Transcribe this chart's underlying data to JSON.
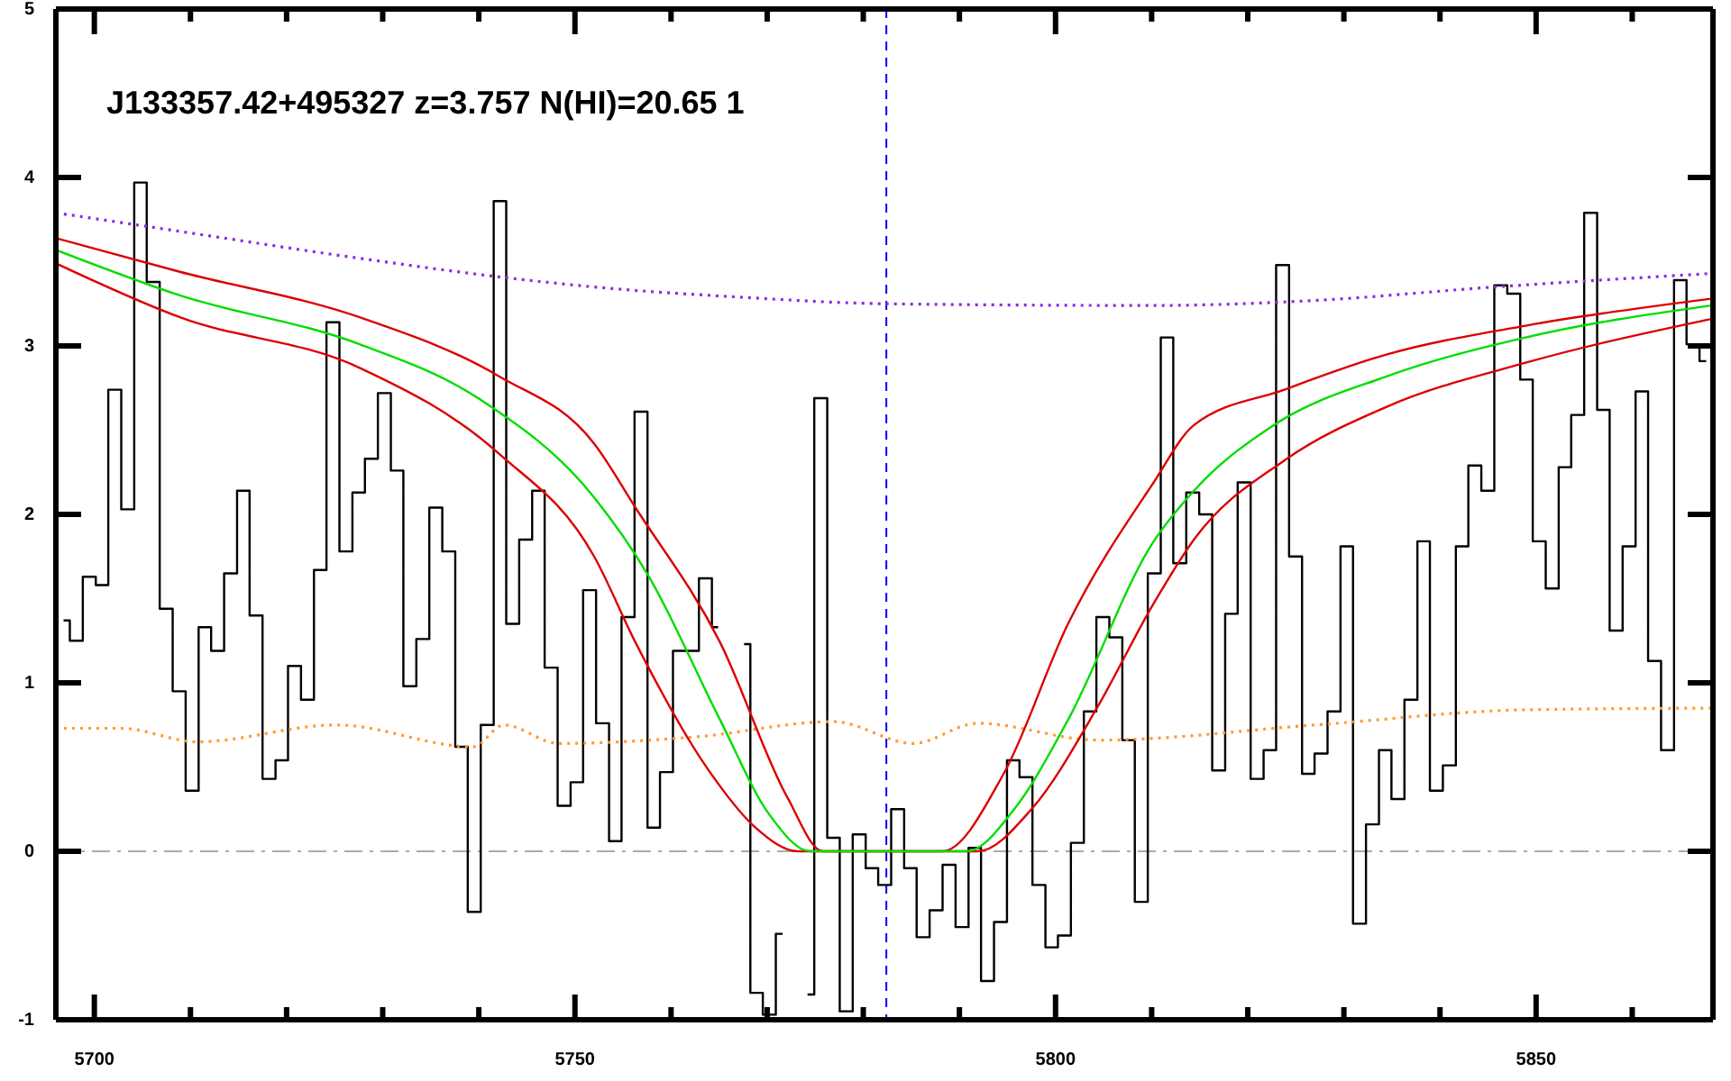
{
  "chart_data": {
    "type": "step",
    "title": "J133357.42+495327 z=3.757 N(HI)=20.65 1",
    "xlim": [
      5696,
      5868.4
    ],
    "ylim": [
      -1,
      5
    ],
    "xticks": [
      5700,
      {
        "value": 5710,
        "label": null
      },
      {
        "value": 5720,
        "label": null
      },
      {
        "value": 5730,
        "label": null
      },
      {
        "value": 5740,
        "label": null
      },
      5750,
      {
        "value": 5760,
        "label": null
      },
      {
        "value": 5770,
        "label": null
      },
      {
        "value": 5780,
        "label": null
      },
      {
        "value": 5790,
        "label": null
      },
      5800,
      {
        "value": 5810,
        "label": null
      },
      {
        "value": 5820,
        "label": null
      },
      {
        "value": 5830,
        "label": null
      },
      {
        "value": 5840,
        "label": null
      },
      5850,
      {
        "value": 5860,
        "label": null
      }
    ],
    "yticks": [
      -1,
      0,
      1,
      2,
      3,
      4,
      5
    ],
    "grid": false,
    "ref_lines": [
      {
        "axis": "y",
        "value": 0,
        "label": null,
        "color": "#aaaaaa",
        "line_style": "dashed"
      },
      {
        "axis": "x",
        "value": 5782.4,
        "label": null,
        "color": "#0000ff",
        "line_style": "dashed"
      }
    ],
    "series": [
      {
        "color": "#000000",
        "line_style": "solid",
        "x": [
          5696.8,
          5698.1,
          5699.5,
          5700.8,
          5702.1,
          5703.5,
          5704.8,
          5706.1,
          5707.5,
          5708.8,
          5710.2,
          5711.5,
          5712.8,
          5714.2,
          5715.5,
          5716.8,
          5718.2,
          5719.5,
          5720.8,
          5722.2,
          5723.5,
          5724.8,
          5726.2,
          5727.5,
          5728.8,
          5730.2,
          5731.5,
          5732.8,
          5734.2,
          5735.5,
          5736.9,
          5738.2,
          5739.5,
          5740.9,
          5742.2,
          5743.5,
          5744.9,
          5746.2,
          5747.5,
          5748.9,
          5750.2,
          5751.5,
          5752.9,
          5754.2,
          5755.5,
          5756.9,
          5758.2,
          5759.5,
          5760.9,
          5762.2,
          5763.6,
          5764.9,
          5766.2,
          5767.6,
          5768.9,
          5770.2,
          5771.6,
          5772.9,
          5774.2,
          5775.6,
          5776.9,
          5778.2,
          5779.6,
          5780.9,
          5782.2,
          5783.6,
          5784.9,
          5786.2,
          5787.6,
          5788.9,
          5790.3,
          5791.6,
          5792.9,
          5794.3,
          5795.6,
          5796.9,
          5798.3,
          5799.6,
          5800.9,
          5802.3,
          5803.6,
          5804.9,
          5806.3,
          5807.6,
          5808.9,
          5810.3,
          5811.6,
          5812.9,
          5814.3,
          5815.6,
          5817.0,
          5818.3,
          5819.6,
          5821.0,
          5822.3,
          5823.6,
          5825.0,
          5826.3,
          5827.6,
          5829.0,
          5830.3,
          5831.6,
          5833.0,
          5834.3,
          5835.6,
          5837.0,
          5838.3,
          5839.6,
          5841.0,
          5842.3,
          5843.6,
          5845.0,
          5846.3,
          5847.7,
          5849.0,
          5850.3,
          5851.7,
          5853.0,
          5854.3,
          5855.7,
          5857.0,
          5858.3,
          5859.7,
          5861.0,
          5862.3,
          5863.7,
          5865.0,
          5866.3,
          5867.7
        ],
        "values": [
          1.37,
          1.25,
          1.63,
          1.58,
          2.74,
          2.03,
          3.97,
          3.38,
          1.44,
          0.95,
          0.36,
          1.33,
          1.19,
          1.65,
          2.14,
          1.4,
          0.43,
          0.54,
          1.1,
          0.9,
          1.67,
          3.14,
          1.78,
          2.13,
          2.33,
          2.72,
          2.26,
          0.98,
          1.26,
          2.04,
          1.78,
          0.62,
          -0.36,
          0.75,
          3.86,
          1.35,
          1.85,
          2.14,
          1.09,
          0.27,
          0.41,
          1.55,
          0.76,
          0.06,
          1.39,
          2.61,
          0.14,
          0.47,
          1.19,
          1.19,
          1.62,
          1.33,
          null,
          1.23,
          -0.84,
          -0.97,
          -0.49,
          null,
          -0.85,
          2.69,
          0.08,
          -0.95,
          0.1,
          -0.1,
          -0.2,
          0.25,
          -0.1,
          -0.51,
          -0.35,
          -0.08,
          -0.45,
          0.02,
          -0.77,
          -0.42,
          0.54,
          0.44,
          -0.2,
          -0.57,
          -0.5,
          0.05,
          0.83,
          1.39,
          1.27,
          0.66,
          -0.3,
          1.65,
          3.05,
          1.71,
          2.13,
          2.0,
          0.48,
          1.41,
          2.19,
          0.43,
          0.6,
          3.48,
          1.75,
          0.46,
          0.58,
          0.83,
          1.81,
          -0.43,
          0.16,
          0.6,
          0.31,
          0.9,
          1.84,
          0.36,
          0.51,
          1.81,
          2.29,
          2.14,
          3.36,
          3.31,
          2.8,
          1.84,
          1.56,
          2.28,
          2.59,
          3.79,
          2.62,
          1.31,
          1.81,
          2.73,
          1.13,
          0.6,
          3.39,
          3.01,
          2.91
        ]
      },
      {
        "type": "line",
        "color": "#8a2be2",
        "line_style": "dotted",
        "x": [
          5696,
          5708.9,
          5727.6,
          5742.1,
          5752.0,
          5767.0,
          5782.6,
          5810.1,
          5827.0,
          5845.7,
          5868.2
        ],
        "values": [
          3.79,
          3.68,
          3.52,
          3.41,
          3.35,
          3.29,
          3.25,
          3.24,
          3.27,
          3.35,
          3.43
        ]
      },
      {
        "type": "line",
        "color": "#ff9933",
        "line_style": "dotted",
        "x": [
          5696,
          5702.8,
          5710.7,
          5725.2,
          5739.4,
          5742.6,
          5748.3,
          5762.7,
          5776.9,
          5785.2,
          5791.9,
          5804.4,
          5827.0,
          5848.9,
          5868.2
        ],
        "values": [
          0.73,
          0.73,
          0.65,
          0.75,
          0.62,
          0.75,
          0.64,
          0.68,
          0.77,
          0.64,
          0.76,
          0.66,
          0.75,
          0.84,
          0.85
        ]
      },
      {
        "type": "line",
        "color": "#dd0000",
        "line_style": "solid",
        "x": [
          5696,
          5708.9,
          5727.6,
          5742.1,
          5752.0,
          5756.3,
          5765.1,
          5772.1,
          5775.8,
          5788.2,
          5794.6,
          5801.3,
          5810.1,
          5814.4,
          5823.8,
          5834.5,
          5848.9,
          5868.2
        ],
        "values": [
          3.64,
          3.44,
          3.17,
          2.82,
          2.42,
          2.04,
          1.24,
          0.32,
          0,
          0,
          0.46,
          1.35,
          2.18,
          2.53,
          2.74,
          2.95,
          3.12,
          3.28
        ]
      },
      {
        "type": "line",
        "color": "#dd0000",
        "line_style": "solid",
        "x": [
          5696,
          5708.9,
          5727.6,
          5742.1,
          5752.0,
          5756.3,
          5763.8,
          5768.8,
          5773.2,
          5791.9,
          5797.5,
          5804.4,
          5810.1,
          5814.4,
          5823.8,
          5834.5,
          5848.9,
          5868.2
        ],
        "values": [
          3.49,
          3.17,
          2.87,
          2.36,
          1.75,
          1.24,
          0.49,
          0.14,
          0,
          0,
          0.25,
          0.86,
          1.46,
          1.85,
          2.32,
          2.64,
          2.9,
          3.16
        ]
      },
      {
        "type": "line",
        "color": "#00dd00",
        "line_style": "solid",
        "x": [
          5696,
          5708.9,
          5727.6,
          5740.2,
          5752.0,
          5757.6,
          5765.1,
          5770.2,
          5774.5,
          5790.8,
          5795.7,
          5801.3,
          5810.1,
          5814.4,
          5822.7,
          5834.5,
          5848.9,
          5868.2
        ],
        "values": [
          3.57,
          3.3,
          3.01,
          2.68,
          2.1,
          1.64,
          0.78,
          0.22,
          0,
          0,
          0.25,
          0.78,
          1.83,
          2.14,
          2.53,
          2.82,
          3.05,
          3.24
        ]
      }
    ]
  }
}
